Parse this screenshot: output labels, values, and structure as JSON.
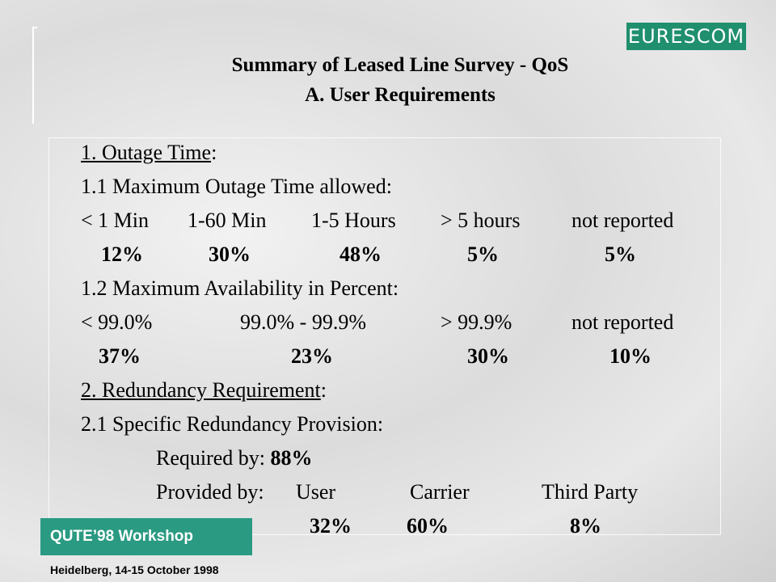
{
  "logo": "EURESCOM",
  "title": {
    "line1": "Summary of Leased Line Survey - QoS",
    "line2": "A. User Requirements"
  },
  "section1": {
    "heading": {
      "underlined": "1. Outage Time",
      "suffix": ":"
    },
    "outage": {
      "label": "1.1 Maximum Outage Time allowed:",
      "columns": [
        "< 1 Min",
        "1-60 Min",
        "1-5 Hours",
        "> 5 hours",
        "not reported"
      ],
      "values": [
        "12%",
        "30%",
        "48%",
        "5%",
        "5%"
      ]
    },
    "availability": {
      "label": "1.2  Maximum Availability in Percent:",
      "columns": [
        "< 99.0%",
        "99.0% - 99.9%",
        "> 99.9%",
        "not reported"
      ],
      "values": [
        "37%",
        "23%",
        "30%",
        "10%"
      ]
    }
  },
  "section2": {
    "heading": {
      "underlined": "2. Redundancy Requirement",
      "suffix": ":"
    },
    "label": "2.1 Specific Redundancy Provision:",
    "required": {
      "label": "Required by:",
      "value": "88%"
    },
    "provided": {
      "label": "Provided by:",
      "columns": [
        "User",
        "Carrier",
        "Third Party"
      ],
      "values": [
        "32%",
        "60%",
        "8%"
      ]
    }
  },
  "footer": {
    "workshop": "QUTE’98 Workshop",
    "place": "Heidelberg, 14-15 October 1998"
  }
}
